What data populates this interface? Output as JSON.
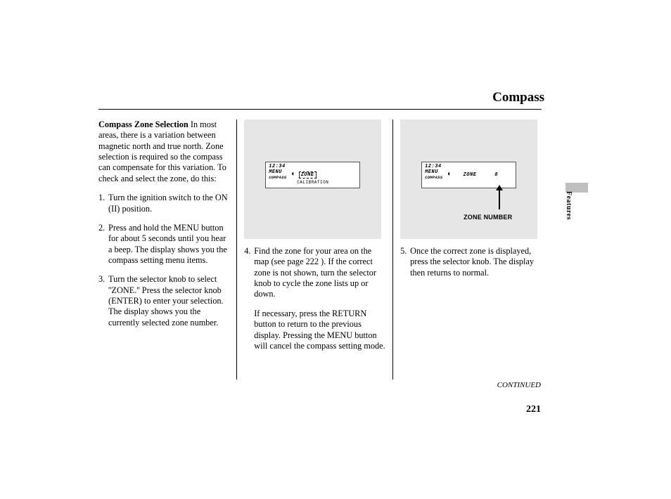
{
  "page": {
    "title": "Compass",
    "section": "Features",
    "number": "221",
    "continued": "CONTINUED"
  },
  "col1": {
    "subhead": "Compass Zone Selection",
    "intro": "In most areas, there is a variation between magnetic north and true north. Zone selection is required so the compass can compensate for this variation. To check and select the zone, do this:",
    "steps": [
      {
        "n": "1.",
        "t": "Turn the ignition switch to the ON (II) position."
      },
      {
        "n": "2.",
        "t": "Press and hold the MENU button for about 5 seconds until you hear a beep. The display shows you the compass setting menu items."
      },
      {
        "n": "3.",
        "t": "Turn the selector knob to select ''ZONE.'' Press the selector knob (ENTER) to enter your selection. The display shows you the currently selected zone number."
      }
    ]
  },
  "col2": {
    "lcd": {
      "clock": "12:34",
      "menu": "MENU",
      "sub": "COMPASS",
      "zone": "ZONE",
      "calib": "CALIBRATION"
    },
    "step": {
      "n": "4.",
      "t": "Find the zone for your area on the map (see page 222 ). If the correct zone is not shown, turn the selector knob to cycle the zone lists up or down."
    },
    "note": "If necessary, press the RETURN button to return to the previous display. Pressing the MENU button will cancel the compass setting mode."
  },
  "col3": {
    "lcd": {
      "clock": "12:34",
      "menu": "MENU",
      "sub": "COMPASS",
      "zone": "ZONE",
      "num": "8",
      "label": "ZONE NUMBER"
    },
    "step": {
      "n": "5.",
      "t": "Once the correct zone is displayed, press the selector knob. The display then returns to normal."
    }
  },
  "colors": {
    "lcd_bg": "#e6e6e6",
    "tab": "#bfbfbf"
  }
}
